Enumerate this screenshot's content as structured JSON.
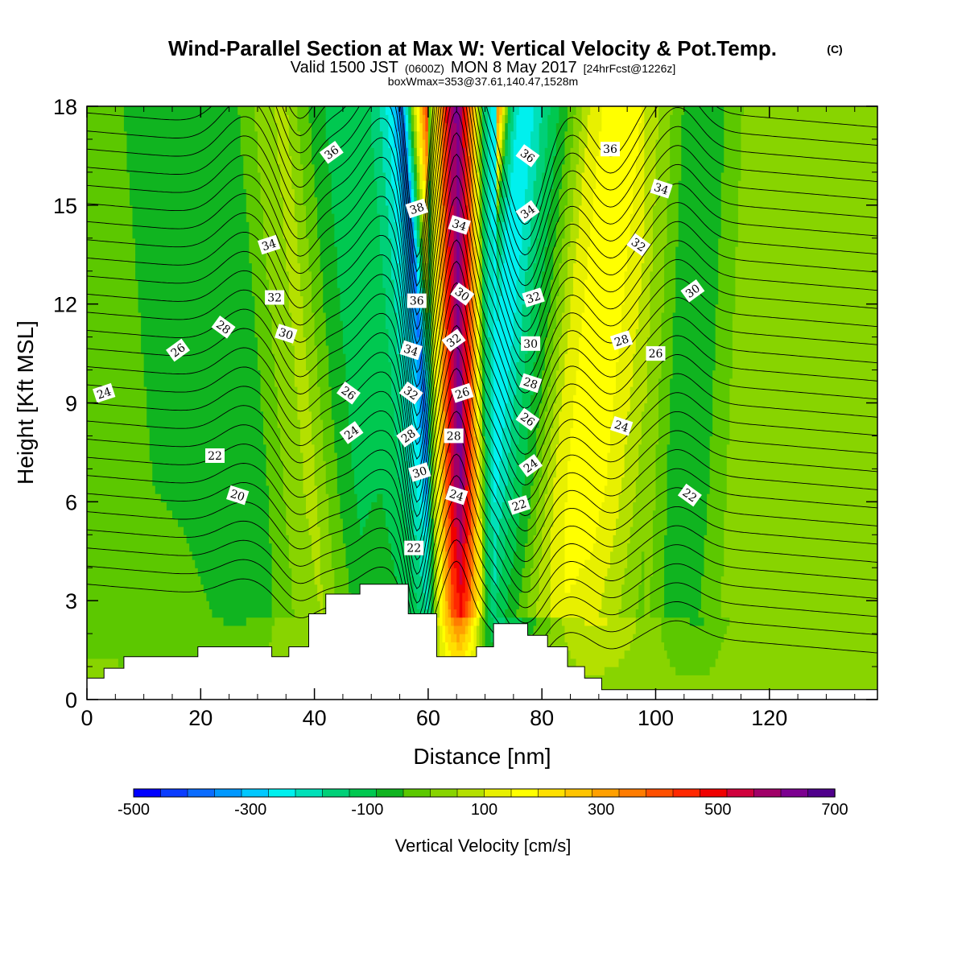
{
  "header": {
    "title": "Wind-Parallel Section at Max W: Vertical Velocity & Pot.Temp.",
    "title_mark": "(C)",
    "valid_prefix": "Valid 1500 JST",
    "valid_zulu": "(0600Z)",
    "valid_date": "MON 8 May 2017",
    "forecast_tag": "[24hrFcst@1226z]",
    "box_info": "boxWmax=353@37.61,140.47,1528m"
  },
  "chart_data": {
    "type": "heatmap",
    "title": "Wind-Parallel Section at Max W: Vertical Velocity & Pot.Temp.",
    "xlabel": "Distance [nm]",
    "ylabel": "Height [Kft MSL]",
    "xlim": [
      0,
      139
    ],
    "ylim": [
      0,
      18
    ],
    "x_ticks": [
      0,
      20,
      40,
      60,
      80,
      100,
      120
    ],
    "y_ticks": [
      0,
      3,
      6,
      9,
      12,
      15,
      18
    ],
    "colorbar": {
      "label": "Vertical Velocity [cm/s]",
      "levels": [
        -500,
        -450,
        -400,
        -350,
        -300,
        -250,
        -200,
        -150,
        -100,
        -50,
        0,
        50,
        100,
        150,
        200,
        250,
        300,
        350,
        400,
        450,
        500,
        550,
        600,
        650,
        700
      ],
      "tick_labels": [
        "-500",
        "-300",
        "-100",
        "100",
        "300",
        "500",
        "700"
      ],
      "colors": [
        "#0000ff",
        "#0a3cff",
        "#0a6cff",
        "#0098ff",
        "#00c8ff",
        "#00f0ee",
        "#00e0b8",
        "#00d078",
        "#00c850",
        "#10b420",
        "#5cc800",
        "#88d400",
        "#b4e000",
        "#e8f000",
        "#ffff00",
        "#ffe000",
        "#ffc400",
        "#ffa000",
        "#ff7c00",
        "#ff5000",
        "#ff2800",
        "#f00000",
        "#d0003c",
        "#a00068",
        "#7c0090",
        "#50008c"
      ]
    },
    "vertical_velocity_profile": {
      "x": [
        0,
        5,
        10,
        15,
        20,
        25,
        28,
        33,
        38,
        42,
        46,
        50,
        54,
        57,
        59,
        61,
        62.5,
        64,
        65.5,
        67,
        68.5,
        70,
        72,
        74,
        77,
        80,
        84,
        88,
        92,
        96,
        100,
        104,
        108,
        112,
        116,
        120,
        126,
        132,
        139
      ],
      "w": [
        -30,
        -40,
        -50,
        -55,
        -70,
        -95,
        -90,
        0,
        70,
        -40,
        -110,
        -100,
        -160,
        -280,
        -420,
        60,
        320,
        560,
        680,
        500,
        240,
        -140,
        -290,
        -260,
        -150,
        -60,
        100,
        190,
        170,
        100,
        20,
        -80,
        -100,
        -10,
        20,
        30,
        20,
        0,
        10
      ]
    },
    "theta_contours": {
      "levels": [
        20,
        22,
        24,
        26,
        28,
        30,
        32,
        34,
        36,
        38
      ],
      "labels": [
        {
          "text": "36",
          "x": 43,
          "y": 16.6
        },
        {
          "text": "34",
          "x": 32,
          "y": 13.8
        },
        {
          "text": "32",
          "x": 33,
          "y": 12.2
        },
        {
          "text": "30",
          "x": 35,
          "y": 11.1
        },
        {
          "text": "28",
          "x": 24,
          "y": 11.3
        },
        {
          "text": "26",
          "x": 16,
          "y": 10.6
        },
        {
          "text": "24",
          "x": 3,
          "y": 9.3
        },
        {
          "text": "22",
          "x": 22.5,
          "y": 7.4
        },
        {
          "text": "20",
          "x": 26.5,
          "y": 6.2
        },
        {
          "text": "26",
          "x": 46,
          "y": 9.3
        },
        {
          "text": "24",
          "x": 46.5,
          "y": 8.1
        },
        {
          "text": "38",
          "x": 58,
          "y": 14.9
        },
        {
          "text": "36",
          "x": 58,
          "y": 12.1
        },
        {
          "text": "34",
          "x": 57,
          "y": 10.6
        },
        {
          "text": "32",
          "x": 57,
          "y": 9.3
        },
        {
          "text": "28",
          "x": 56.5,
          "y": 8.0
        },
        {
          "text": "30",
          "x": 58.5,
          "y": 6.9
        },
        {
          "text": "22",
          "x": 57.5,
          "y": 4.6
        },
        {
          "text": "34",
          "x": 65.5,
          "y": 14.4
        },
        {
          "text": "30",
          "x": 66,
          "y": 12.3
        },
        {
          "text": "32",
          "x": 64.5,
          "y": 10.9
        },
        {
          "text": "26",
          "x": 66,
          "y": 9.3
        },
        {
          "text": "28",
          "x": 64.5,
          "y": 8.0
        },
        {
          "text": "24",
          "x": 65,
          "y": 6.2
        },
        {
          "text": "36",
          "x": 77.5,
          "y": 16.5
        },
        {
          "text": "34",
          "x": 77.5,
          "y": 14.8
        },
        {
          "text": "32",
          "x": 78.5,
          "y": 12.2
        },
        {
          "text": "30",
          "x": 78,
          "y": 10.8
        },
        {
          "text": "28",
          "x": 78,
          "y": 9.6
        },
        {
          "text": "26",
          "x": 77.5,
          "y": 8.5
        },
        {
          "text": "24",
          "x": 78,
          "y": 7.1
        },
        {
          "text": "22",
          "x": 76,
          "y": 5.9
        },
        {
          "text": "36",
          "x": 92,
          "y": 16.7
        },
        {
          "text": "34",
          "x": 101,
          "y": 15.5
        },
        {
          "text": "32",
          "x": 97,
          "y": 13.8
        },
        {
          "text": "30",
          "x": 106.5,
          "y": 12.4
        },
        {
          "text": "28",
          "x": 94,
          "y": 10.9
        },
        {
          "text": "26",
          "x": 100,
          "y": 10.5
        },
        {
          "text": "24",
          "x": 94,
          "y": 8.3
        },
        {
          "text": "22",
          "x": 106,
          "y": 6.2
        }
      ]
    },
    "terrain_kft": [
      [
        0,
        0.65
      ],
      [
        3,
        0.95
      ],
      [
        6.5,
        1.3
      ],
      [
        19.5,
        1.6
      ],
      [
        32.5,
        1.3
      ],
      [
        35.5,
        1.6
      ],
      [
        39,
        2.6
      ],
      [
        42,
        3.2
      ],
      [
        48,
        3.5
      ],
      [
        56.5,
        2.6
      ],
      [
        61.5,
        1.3
      ],
      [
        68.5,
        1.6
      ],
      [
        71.5,
        2.3
      ],
      [
        77.5,
        1.95
      ],
      [
        81,
        1.6
      ],
      [
        84.5,
        1.0
      ],
      [
        87.5,
        0.65
      ],
      [
        90.5,
        0.3
      ],
      [
        139,
        0.3
      ]
    ]
  }
}
